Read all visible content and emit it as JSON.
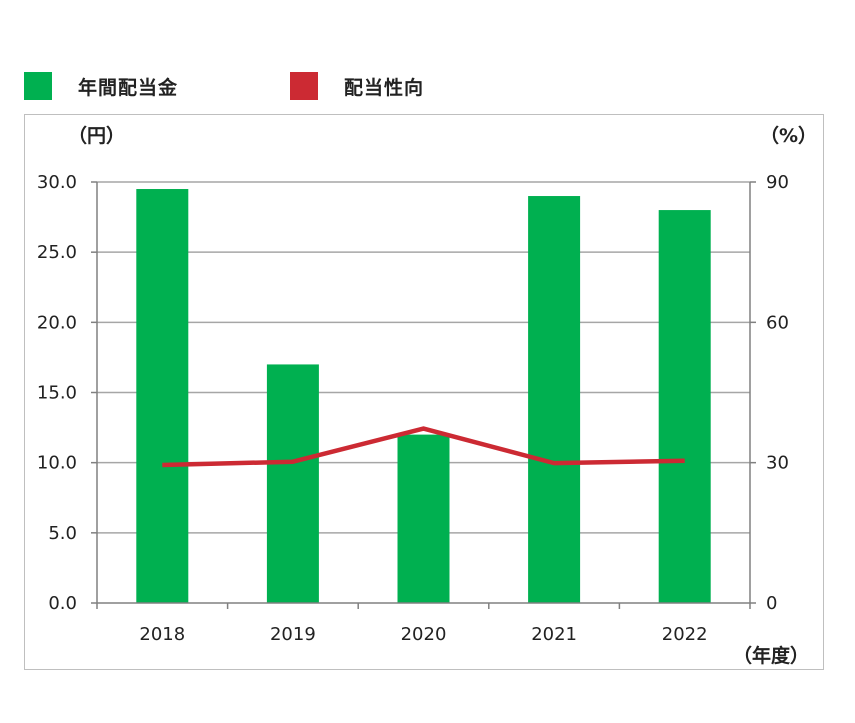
{
  "legend": {
    "bar_label": "年間配当金",
    "line_label": "配当性向"
  },
  "colors": {
    "bar": "#00b050",
    "line": "#cc2a33",
    "grid": "#a6a6a6",
    "axis": "#808080"
  },
  "chart_data": {
    "type": "bar",
    "categories": [
      "2018",
      "2019",
      "2020",
      "2021",
      "2022"
    ],
    "series": [
      {
        "name": "年間配当金",
        "type": "bar",
        "axis": "left",
        "values": [
          29.5,
          17.0,
          12.0,
          29.0,
          28.0
        ]
      },
      {
        "name": "配当性向",
        "type": "line",
        "axis": "right",
        "values": [
          29.5,
          30.2,
          37.3,
          29.9,
          30.4
        ]
      }
    ],
    "y_left": {
      "unit_label": "（円）",
      "ylim": [
        0,
        30
      ],
      "ticks": [
        "0.0",
        "5.0",
        "10.0",
        "15.0",
        "20.0",
        "25.0",
        "30.0"
      ]
    },
    "y_right": {
      "unit_label": "（%）",
      "ylim": [
        0,
        90
      ],
      "ticks": [
        "0",
        "30",
        "60",
        "90"
      ]
    },
    "x_unit_label": "（年度）",
    "grid": true,
    "legend_position": "top-left"
  }
}
